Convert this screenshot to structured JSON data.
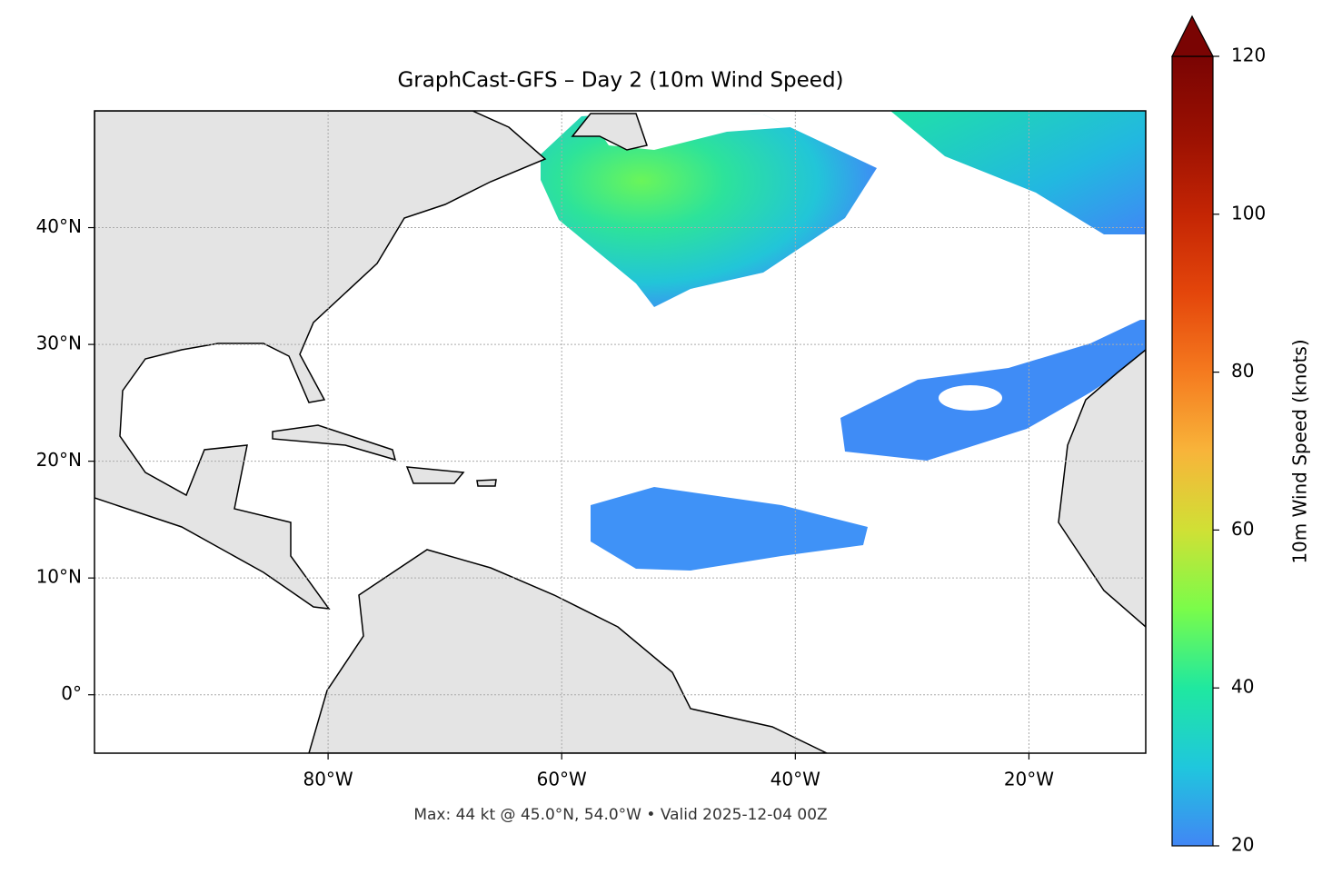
{
  "map": {
    "title": "GraphCast-GFS – Day 2 (10m Wind Speed)",
    "xlim": [
      -100,
      -10
    ],
    "ylim": [
      -5,
      50
    ],
    "xticks": [
      {
        "value": -80,
        "label": "80°W"
      },
      {
        "value": -60,
        "label": "60°W"
      },
      {
        "value": -40,
        "label": "40°W"
      },
      {
        "value": -20,
        "label": "20°W"
      }
    ],
    "yticks": [
      {
        "value": 0,
        "label": "0°"
      },
      {
        "value": 10,
        "label": "10°N"
      },
      {
        "value": 20,
        "label": "20°N"
      },
      {
        "value": 30,
        "label": "30°N"
      },
      {
        "value": 40,
        "label": "40°N"
      }
    ],
    "grid": true,
    "footer": "Max: 44 kt @ 45.0°N, 54.0°W • Valid 2025-12-04 00Z",
    "colorbar": {
      "label": "10m Wind Speed (knots)",
      "lim": [
        20,
        120
      ],
      "ticks": [
        20,
        40,
        60,
        80,
        100,
        120
      ]
    }
  }
}
